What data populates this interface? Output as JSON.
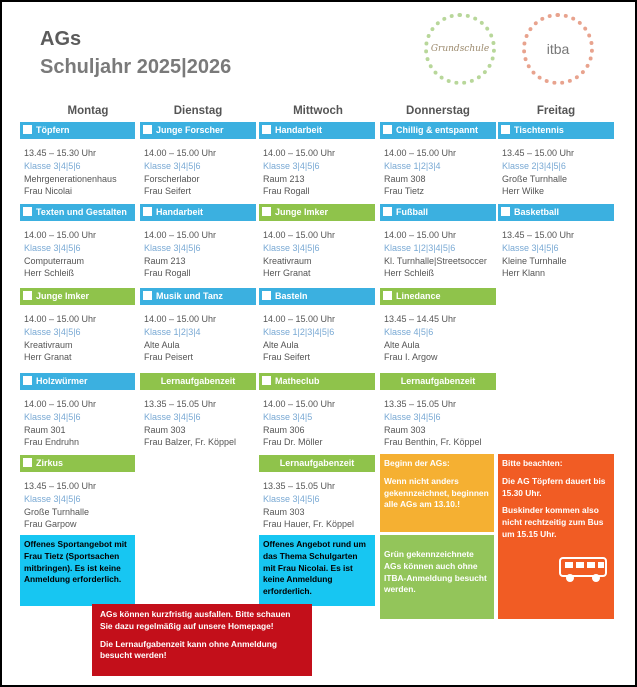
{
  "header": {
    "title": "AGs",
    "subtitle": "Schuljahr 2025|2026"
  },
  "logos": {
    "left": "Grundschule",
    "right": "itba"
  },
  "days": [
    "Montag",
    "Dienstag",
    "Mittwoch",
    "Donnerstag",
    "Freitag"
  ],
  "columns": [
    {
      "ags": [
        {
          "name": "Töpfern",
          "time": "13.45 – 15.30 Uhr",
          "klasse": "Klasse 3|4|5|6",
          "room": "Mehrgenerationenhaus",
          "teacher": "Frau Nicolai"
        },
        {
          "name": "Texten und Gestalten",
          "time": "14.00 – 15.00 Uhr",
          "klasse": "Klasse 3|4|5|6",
          "room": "Computerraum",
          "teacher": "Herr Schleiß"
        },
        {
          "name": "Junge Imker",
          "time": "14.00 – 15.00 Uhr",
          "klasse": "Klasse 3|4|5|6",
          "room": "Kreativraum",
          "teacher": "Herr Granat"
        },
        {
          "name": "Holzwürmer",
          "time": "14.00 – 15.00 Uhr",
          "klasse": "Klasse 3|4|5|6",
          "room": "Raum 301",
          "teacher": "Frau Endruhn"
        },
        {
          "name": "Zirkus",
          "time": "13.45 – 15.00 Uhr",
          "klasse": "Klasse 3|4|5|6",
          "room": "Große Turnhalle",
          "teacher": "Frau Garpow"
        }
      ]
    },
    {
      "ags": [
        {
          "name": "Junge Forscher",
          "time": "14.00 – 15.00 Uhr",
          "klasse": "Klasse 3|4|5|6",
          "room": "Forscherlabor",
          "teacher": "Frau Seifert"
        },
        {
          "name": "Handarbeit",
          "time": "14.00 – 15.00 Uhr",
          "klasse": "Klasse 3|4|5|6",
          "room": "Raum 213",
          "teacher": "Frau Rogall"
        },
        {
          "name": "Musik und Tanz",
          "time": "14.00 – 15.00 Uhr",
          "klasse": "Klasse 1|2|3|4",
          "room": "Alte Aula",
          "teacher": "Frau Peisert"
        },
        {
          "name": "Lernaufgabenzeit",
          "time": "13.35 – 15.05 Uhr",
          "klasse": "Klasse 3|4|5|6",
          "room": "Raum 303",
          "teacher": "Frau Balzer, Fr. Köppel"
        }
      ]
    },
    {
      "ags": [
        {
          "name": "Handarbeit",
          "time": "14.00 – 15.00 Uhr",
          "klasse": "Klasse 3|4|5|6",
          "room": "Raum 213",
          "teacher": "Frau Rogall"
        },
        {
          "name": "Junge Imker",
          "time": "14.00 – 15.00 Uhr",
          "klasse": "Klasse 3|4|5|6",
          "room": "Kreativraum",
          "teacher": "Herr Granat"
        },
        {
          "name": "Basteln",
          "time": "14.00 – 15.00 Uhr",
          "klasse": "Klasse 1|2|3|4|5|6",
          "room": "Alte Aula",
          "teacher": "Frau Seifert"
        },
        {
          "name": "Matheclub",
          "time": "14.00 – 15.00 Uhr",
          "klasse": "Klasse 3|4|5",
          "room": "Raum 306",
          "teacher": "Frau Dr. Möller"
        },
        {
          "name": "Lernaufgabenzeit",
          "time": "13.35 – 15.05 Uhr",
          "klasse": "Klasse 3|4|5|6",
          "room": "Raum 303",
          "teacher": "Frau Hauer, Fr. Köppel"
        }
      ]
    },
    {
      "ags": [
        {
          "name": "Chillig & entspannt",
          "time": "14.00 – 15.00 Uhr",
          "klasse": "Klasse 1|2|3|4",
          "room": "Raum 308",
          "teacher": "Frau Tietz"
        },
        {
          "name": "Fußball",
          "time": "14.00 – 15.00 Uhr",
          "klasse": "Klasse 1|2|3|4|5|6",
          "room": "Kl. Turnhalle|Streetsoccer",
          "teacher": "Herr Schleiß"
        },
        {
          "name": "Linedance",
          "time": "13.45 – 14.45 Uhr",
          "klasse": "Klasse 4|5|6",
          "room": "Alte Aula",
          "teacher": "Frau I. Argow"
        },
        {
          "name": "Lernaufgabenzeit",
          "time": "13.35 – 15.05 Uhr",
          "klasse": "Klasse 3|4|5|6",
          "room": "Raum 303",
          "teacher": "Frau Benthin, Fr. Köppel"
        }
      ]
    },
    {
      "ags": [
        {
          "name": "Tischtennis",
          "time": "13.45 – 15.00 Uhr",
          "klasse": "Klasse 2|3|4|5|6",
          "room": "Große Turnhalle",
          "teacher": "Herr Wilke"
        },
        {
          "name": "Basketball",
          "time": "13.45 – 15.00 Uhr",
          "klasse": "Klasse 3|4|5|6",
          "room": "Kleine Turnhalle",
          "teacher": "Herr Klann"
        }
      ]
    }
  ],
  "notes": {
    "monday_box": "Offenes Sportangebot mit Frau Tietz (Sportsachen mitbringen). Es ist keine Anmeldung erforderlich.",
    "wednesday_box": "Offenes Angebot rund um das Thema Schulgarten mit Frau Nicolai. Es ist keine Anmeldung erforderlich.",
    "start_box": "Beginn der AGs:",
    "start_box_2": "Wenn nicht anders gekennzeichnet, beginnen alle AGs am 13.10.!",
    "green_box": "Grün gekennzeichnete AGs können auch ohne ITBA-Anmeldung besucht werden.",
    "red_title": "Bitte beachten:",
    "red_1": "Die AG Töpfern dauert bis 15.30 Uhr.",
    "red_2": "Buskinder kommen also nicht rechtzeitig zum Bus um 15.15 Uhr.",
    "footer_1": "AGs können kurzfristig ausfallen. Bitte schauen Sie dazu regelmäßig auf unsere Homepage!",
    "footer_2": "Die Lernaufgabenzeit kann ohne Anmeldung besucht werden!"
  },
  "colors": {
    "blue": "#3bb0e0",
    "green": "#8fc34b",
    "cyan": "#17c6f2",
    "orange": "#f5b032",
    "red": "#f15c24",
    "darkred": "#c30f1a"
  }
}
